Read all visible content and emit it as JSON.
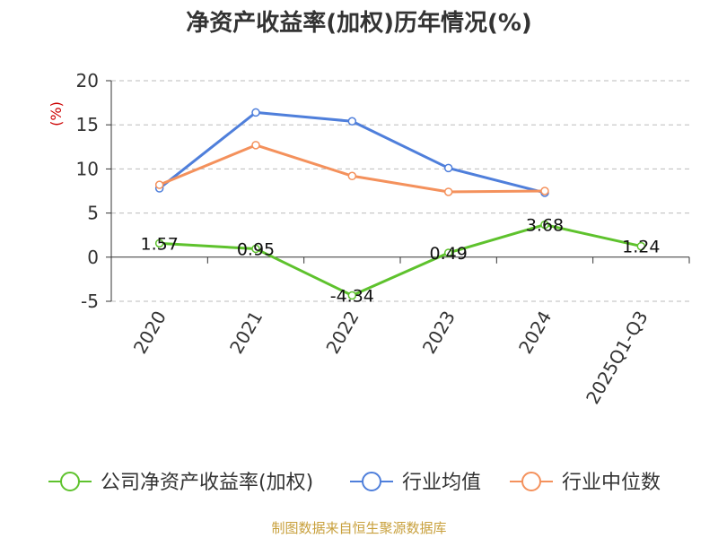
{
  "chart_data": {
    "type": "line",
    "title": "净资产收益率(加权)历年情况(%)",
    "ylabel": "(%)",
    "xlabel": "",
    "ylim": [
      -5,
      20
    ],
    "yticks": [
      20,
      15,
      10,
      5,
      0,
      -5
    ],
    "categories": [
      "2020",
      "2021",
      "2022",
      "2023",
      "2024",
      "2025Q1-Q3"
    ],
    "grid": true,
    "legend_position": "bottom",
    "series": [
      {
        "name": "公司净资产收益率(加权)",
        "color": "#5ec22d",
        "values": [
          1.57,
          0.95,
          -4.34,
          0.49,
          3.68,
          1.24
        ],
        "labels": [
          "1.57",
          "0.95",
          "-4.34",
          "0.49",
          "3.68",
          "1.24"
        ]
      },
      {
        "name": "行业均值",
        "color": "#4f7fdb",
        "values": [
          7.8,
          16.4,
          15.4,
          10.1,
          7.3,
          null
        ]
      },
      {
        "name": "行业中位数",
        "color": "#f4915c",
        "values": [
          8.2,
          12.7,
          9.2,
          7.4,
          7.5,
          null
        ]
      }
    ]
  },
  "footer": {
    "source": "制图数据来自恒生聚源数据库",
    "source_color": "#c8a03c"
  },
  "colors": {
    "ylabel": "#cc0000",
    "grid": "#bbbbbb",
    "axis": "#333333"
  }
}
